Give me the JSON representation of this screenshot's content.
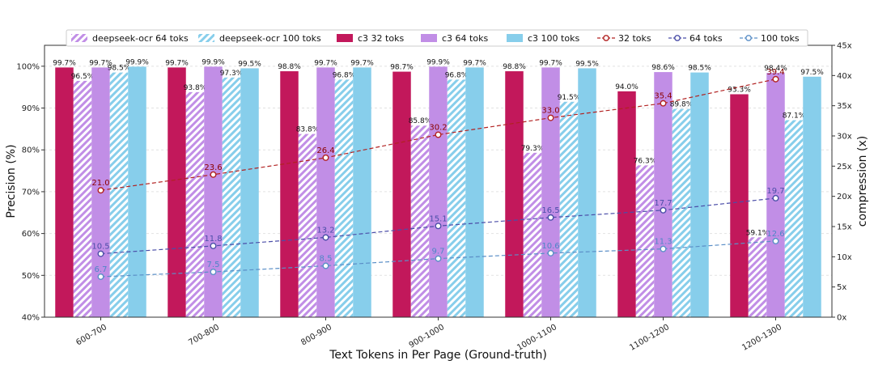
{
  "chart_data": {
    "type": "bar",
    "xlabel": "Text Tokens in Per Page (Ground-truth)",
    "ylabel": "Precision (%)",
    "y2label": "compression (x)",
    "categories": [
      "600-700",
      "700-800",
      "800-900",
      "900-1000",
      "1000-1100",
      "1100-1200",
      "1200-1300"
    ],
    "ylim": [
      40,
      105
    ],
    "y2lim": [
      0,
      45
    ],
    "yticks": [
      "40%",
      "50%",
      "60%",
      "70%",
      "80%",
      "90%",
      "100%"
    ],
    "y2ticks": [
      "0x",
      "5x",
      "10x",
      "15x",
      "20x",
      "25x",
      "30x",
      "35x",
      "40x",
      "45x"
    ],
    "grid": true,
    "legend_position": "top",
    "bar_series": [
      {
        "name": "c3 32 toks",
        "color": "#c2185b",
        "pattern": "solid",
        "values": [
          99.7,
          99.7,
          98.8,
          98.7,
          98.8,
          94.0,
          93.3
        ],
        "labels": [
          "99.7%",
          "99.7%",
          "98.8%",
          "98.7%",
          "98.8%",
          "94.0%",
          "93.3%"
        ]
      },
      {
        "name": "deepseek-ocr 64 toks",
        "color": "#c18ee6",
        "pattern": "hatch",
        "values": [
          96.5,
          93.8,
          83.8,
          85.8,
          79.3,
          76.3,
          59.1
        ],
        "labels": [
          "96.5%",
          "93.8%",
          "83.8%",
          "85.8%",
          "79.3%",
          "76.3%",
          "59.1%"
        ]
      },
      {
        "name": "c3 64 toks",
        "color": "#c18ee6",
        "pattern": "solid",
        "values": [
          99.7,
          99.9,
          99.7,
          99.9,
          99.7,
          98.6,
          98.4
        ],
        "labels": [
          "99.7%",
          "99.9%",
          "99.7%",
          "99.9%",
          "99.7%",
          "98.6%",
          "98.4%"
        ]
      },
      {
        "name": "deepseek-ocr 100 toks",
        "color": "#87ceeb",
        "pattern": "hatch",
        "values": [
          98.5,
          97.3,
          96.8,
          96.8,
          91.5,
          89.8,
          87.1
        ],
        "labels": [
          "98.5%",
          "97.3%",
          "96.8%",
          "96.8%",
          "91.5%",
          "89.8%",
          "87.1%"
        ]
      },
      {
        "name": "c3 100 toks",
        "color": "#87ceeb",
        "pattern": "solid",
        "values": [
          99.9,
          99.5,
          99.7,
          99.7,
          99.5,
          98.5,
          97.5
        ],
        "labels": [
          "99.9%",
          "99.5%",
          "99.7%",
          "99.7%",
          "99.5%",
          "98.5%",
          "97.5%"
        ]
      }
    ],
    "line_series": [
      {
        "name": "32 toks",
        "color": "#b22222",
        "text_color": "#8b0000",
        "values": [
          21.0,
          23.6,
          26.4,
          30.2,
          33.0,
          35.4,
          39.4
        ],
        "labels": [
          "21.0",
          "23.6",
          "26.4",
          "30.2",
          "33.0",
          "35.4",
          "39.4"
        ]
      },
      {
        "name": "64 toks",
        "color": "#4b4ea8",
        "text_color": "#4b4ea8",
        "values": [
          10.5,
          11.8,
          13.2,
          15.1,
          16.5,
          17.7,
          19.7
        ],
        "labels": [
          "10.5",
          "11.8",
          "13.2",
          "15.1",
          "16.5",
          "17.7",
          "19.7"
        ]
      },
      {
        "name": "100 toks",
        "color": "#5b8fc7",
        "text_color": "#4f86c6",
        "values": [
          6.7,
          7.5,
          8.5,
          9.7,
          10.6,
          11.3,
          12.6
        ],
        "labels": [
          "6.7",
          "7.5",
          "8.5",
          "9.7",
          "10.6",
          "11.3",
          "12.6"
        ]
      }
    ],
    "legend_order": [
      "deepseek-ocr 64 toks",
      "deepseek-ocr 100 toks",
      "c3 32 toks",
      "c3 64 toks",
      "c3 100 toks",
      "32 toks",
      "64 toks",
      "100 toks"
    ]
  }
}
